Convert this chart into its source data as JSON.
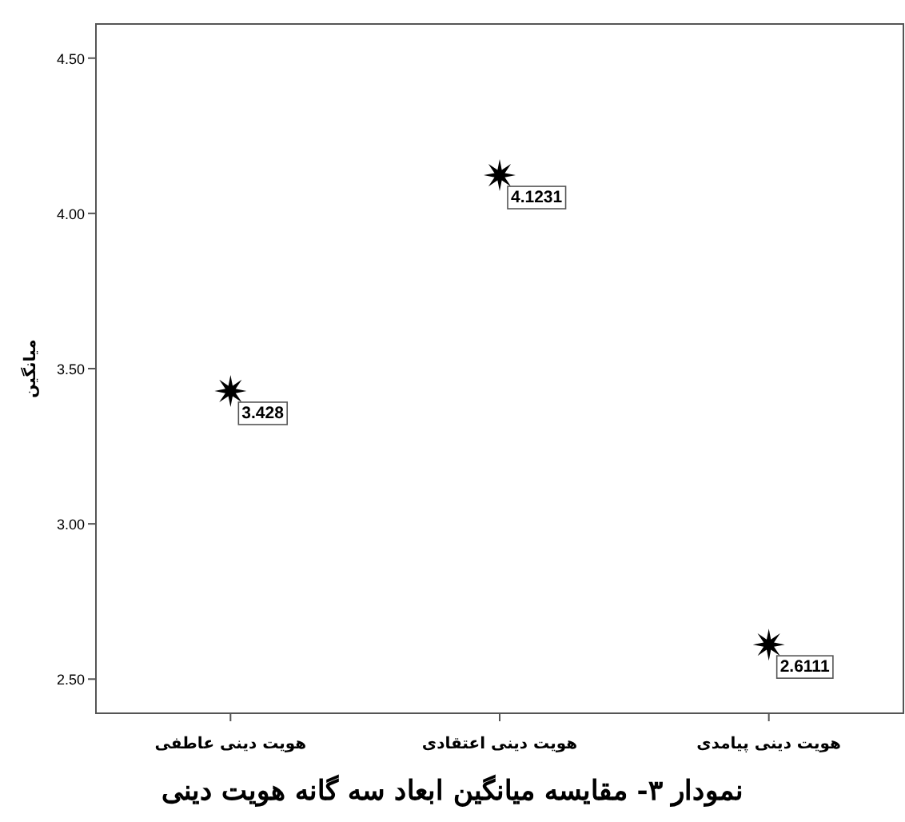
{
  "chart_data": {
    "type": "scatter",
    "title": "نمودار ۳- مقایسه میانگین ابعاد سه گانه هویت دینی",
    "ylabel": "میانگین",
    "categories": [
      "هویت دینی عاطفی",
      "هویت دینی اعتقادی",
      "هویت دینی پیامدی"
    ],
    "values": [
      3.428,
      4.1231,
      2.6111
    ],
    "value_labels": [
      "3.428",
      "4.1231",
      "2.6111"
    ],
    "color": "#000000",
    "marker": "star",
    "ylim": [
      2.39,
      4.61
    ],
    "yticks": [
      {
        "value": 2.5,
        "label": "2.50"
      },
      {
        "value": 3.0,
        "label": "3.00"
      },
      {
        "value": 3.5,
        "label": "3.50"
      },
      {
        "value": 4.0,
        "label": "4.00"
      },
      {
        "value": 4.5,
        "label": "4.50"
      }
    ],
    "grid": false
  }
}
